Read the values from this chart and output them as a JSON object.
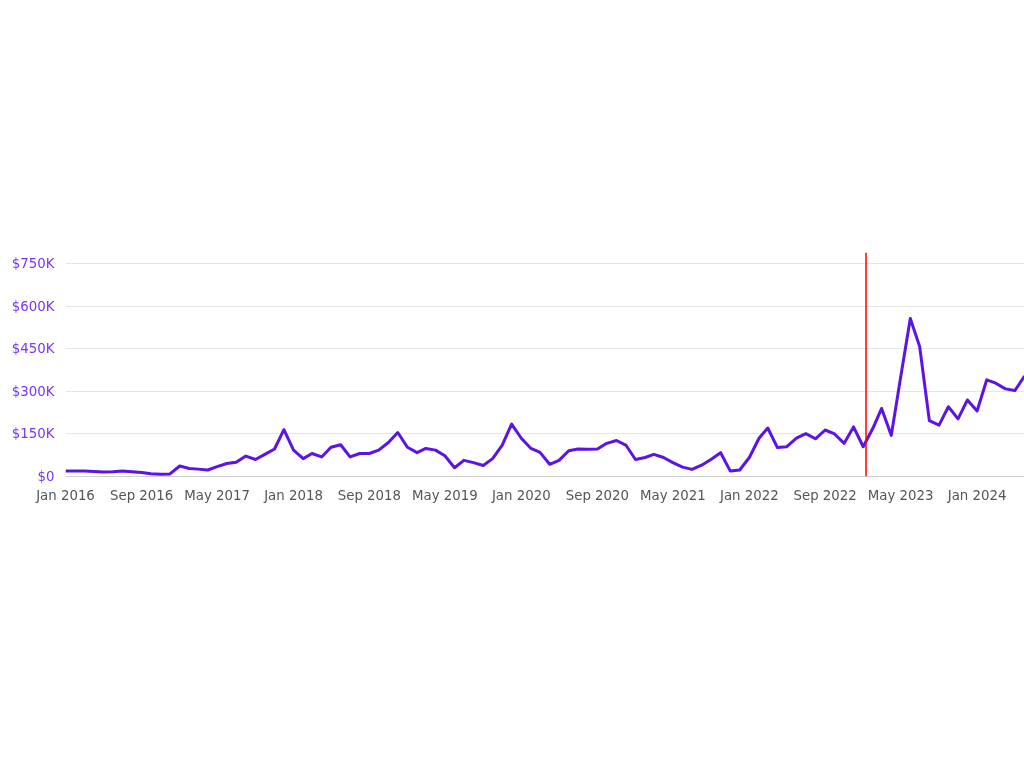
{
  "chart_data": {
    "type": "line",
    "x": [
      "2016-01",
      "2016-02",
      "2016-03",
      "2016-04",
      "2016-05",
      "2016-06",
      "2016-07",
      "2016-08",
      "2016-09",
      "2016-10",
      "2016-11",
      "2016-12",
      "2017-01",
      "2017-02",
      "2017-03",
      "2017-04",
      "2017-05",
      "2017-06",
      "2017-07",
      "2017-08",
      "2017-09",
      "2017-10",
      "2017-11",
      "2017-12",
      "2018-01",
      "2018-02",
      "2018-03",
      "2018-04",
      "2018-05",
      "2018-06",
      "2018-07",
      "2018-08",
      "2018-09",
      "2018-10",
      "2018-11",
      "2018-12",
      "2019-01",
      "2019-02",
      "2019-03",
      "2019-04",
      "2019-05",
      "2019-06",
      "2019-07",
      "2019-08",
      "2019-09",
      "2019-10",
      "2019-11",
      "2019-12",
      "2020-01",
      "2020-02",
      "2020-03",
      "2020-04",
      "2020-05",
      "2020-06",
      "2020-07",
      "2020-08",
      "2020-09",
      "2020-10",
      "2020-11",
      "2020-12",
      "2021-01",
      "2021-02",
      "2021-03",
      "2021-04",
      "2021-05",
      "2021-06",
      "2021-07",
      "2021-08",
      "2021-09",
      "2021-10",
      "2021-11",
      "2021-12",
      "2022-01",
      "2022-02",
      "2022-03",
      "2022-04",
      "2022-05",
      "2022-06",
      "2022-07",
      "2022-08",
      "2022-09",
      "2022-10",
      "2022-11",
      "2022-12",
      "2023-01",
      "2023-02",
      "2023-03",
      "2023-04",
      "2023-05",
      "2023-06",
      "2023-07",
      "2023-08",
      "2023-09",
      "2023-10",
      "2023-11",
      "2023-12",
      "2024-01",
      "2024-02",
      "2024-03",
      "2024-04",
      "2024-05",
      "2024-06"
    ],
    "series": [
      {
        "color": "#5b13e6",
        "values": [
          19000,
          19000,
          19000,
          18000,
          16000,
          17000,
          19000,
          17000,
          14000,
          10000,
          8000,
          9000,
          37000,
          28000,
          26000,
          23000,
          35000,
          46000,
          50000,
          72000,
          60000,
          78000,
          97000,
          165000,
          93000,
          63000,
          81000,
          69000,
          103000,
          112000,
          69000,
          81000,
          81000,
          93000,
          120000,
          155000,
          103000,
          84000,
          99000,
          93000,
          73000,
          31000,
          57000,
          49000,
          39000,
          63000,
          111000,
          185000,
          135000,
          99000,
          85000,
          43000,
          57000,
          91000,
          97000,
          96000,
          97000,
          117000,
          127000,
          111000,
          60000,
          67000,
          78000,
          67000,
          49000,
          33000,
          25000,
          40000,
          61000,
          84000,
          19000,
          23000,
          67000,
          135000,
          171000,
          102000,
          105000,
          135000,
          151000,
          133000,
          164000,
          150000,
          117000,
          175000,
          105000,
          170000,
          240000,
          145000,
          350000,
          557000,
          458000,
          197000,
          181000,
          246000,
          203000,
          270000,
          231000,
          341000,
          329000,
          309000,
          303000,
          354000
        ]
      }
    ],
    "xlim": [
      "2016-01",
      "2024-06"
    ],
    "xticks": [
      {
        "value": "2016-01",
        "label": "Jan 2016"
      },
      {
        "value": "2016-09",
        "label": "Sep 2016"
      },
      {
        "value": "2017-05",
        "label": "May 2017"
      },
      {
        "value": "2018-01",
        "label": "Jan 2018"
      },
      {
        "value": "2018-09",
        "label": "Sep 2018"
      },
      {
        "value": "2019-05",
        "label": "May 2019"
      },
      {
        "value": "2020-01",
        "label": "Jan 2020"
      },
      {
        "value": "2020-09",
        "label": "Sep 2020"
      },
      {
        "value": "2021-05",
        "label": "May 2021"
      },
      {
        "value": "2022-01",
        "label": "Jan 2022"
      },
      {
        "value": "2022-09",
        "label": "Sep 2022"
      },
      {
        "value": "2023-05",
        "label": "May 2023"
      },
      {
        "value": "2024-01",
        "label": "Jan 2024"
      }
    ],
    "ylim": [
      0,
      790000
    ],
    "yticks": [
      {
        "value": 0,
        "label": "$0"
      },
      {
        "value": 150000,
        "label": "$150K"
      },
      {
        "value": 300000,
        "label": "$300K"
      },
      {
        "value": 450000,
        "label": "$450K"
      },
      {
        "value": 600000,
        "label": "$600K"
      },
      {
        "value": 750000,
        "label": "$750K"
      }
    ],
    "grid": "y",
    "marker": "none",
    "line_style": "solid",
    "ref_lines": [
      {
        "axis": "x",
        "value": "2023-01-10",
        "color": "#ff0000",
        "line_style": "solid"
      }
    ]
  }
}
